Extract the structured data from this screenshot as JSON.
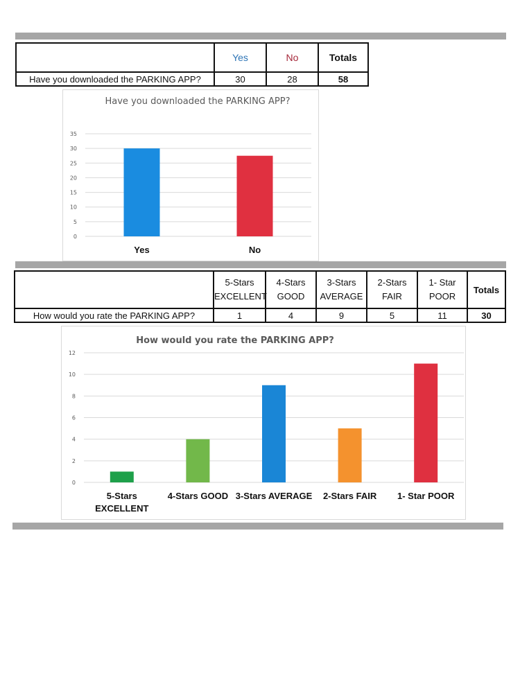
{
  "table1": {
    "headers": [
      "Yes",
      "No",
      "Totals"
    ],
    "header_colors": [
      "#2e75b6",
      "#a6283a",
      "#111111"
    ],
    "question": "Have you downloaded the PARKING APP?",
    "values": [
      "30",
      "28",
      "58"
    ]
  },
  "table2": {
    "headers": [
      [
        "5-Stars",
        "EXCELLENT"
      ],
      [
        "4-Stars",
        "GOOD"
      ],
      [
        "3-Stars",
        "AVERAGE"
      ],
      [
        "2-Stars",
        "FAIR"
      ],
      [
        "1- Star",
        "POOR"
      ],
      [
        "Totals"
      ]
    ],
    "question": "How would you rate the PARKING APP?",
    "values": [
      "1",
      "4",
      "9",
      "5",
      "11",
      "30"
    ]
  },
  "chart_data": [
    {
      "type": "bar",
      "title": "Have you downloaded the PARKING APP?",
      "categories": [
        "Yes",
        "No"
      ],
      "values": [
        30,
        27.5
      ],
      "colors": [
        "#1a8ce0",
        "#e03040"
      ],
      "ylim": [
        0,
        35
      ],
      "yticks": [
        "0",
        "5",
        "10",
        "15",
        "20",
        "25",
        "30",
        "35"
      ],
      "grid": true,
      "legend": "none"
    },
    {
      "type": "bar",
      "title": "How would you rate the PARKING APP?",
      "categories": [
        [
          "5-Stars",
          "EXCELLENT"
        ],
        [
          "4-Stars GOOD"
        ],
        [
          "3-Stars AVERAGE"
        ],
        [
          "2-Stars FAIR"
        ],
        [
          "1- Star POOR"
        ]
      ],
      "values": [
        1,
        4,
        9,
        5,
        11
      ],
      "colors": [
        "#1ea04a",
        "#72b84a",
        "#1a86d6",
        "#f4922e",
        "#df3040"
      ],
      "ylim": [
        0,
        12
      ],
      "yticks": [
        "0",
        "2",
        "4",
        "6",
        "8",
        "10",
        "12"
      ],
      "grid": true,
      "legend": "none"
    }
  ]
}
